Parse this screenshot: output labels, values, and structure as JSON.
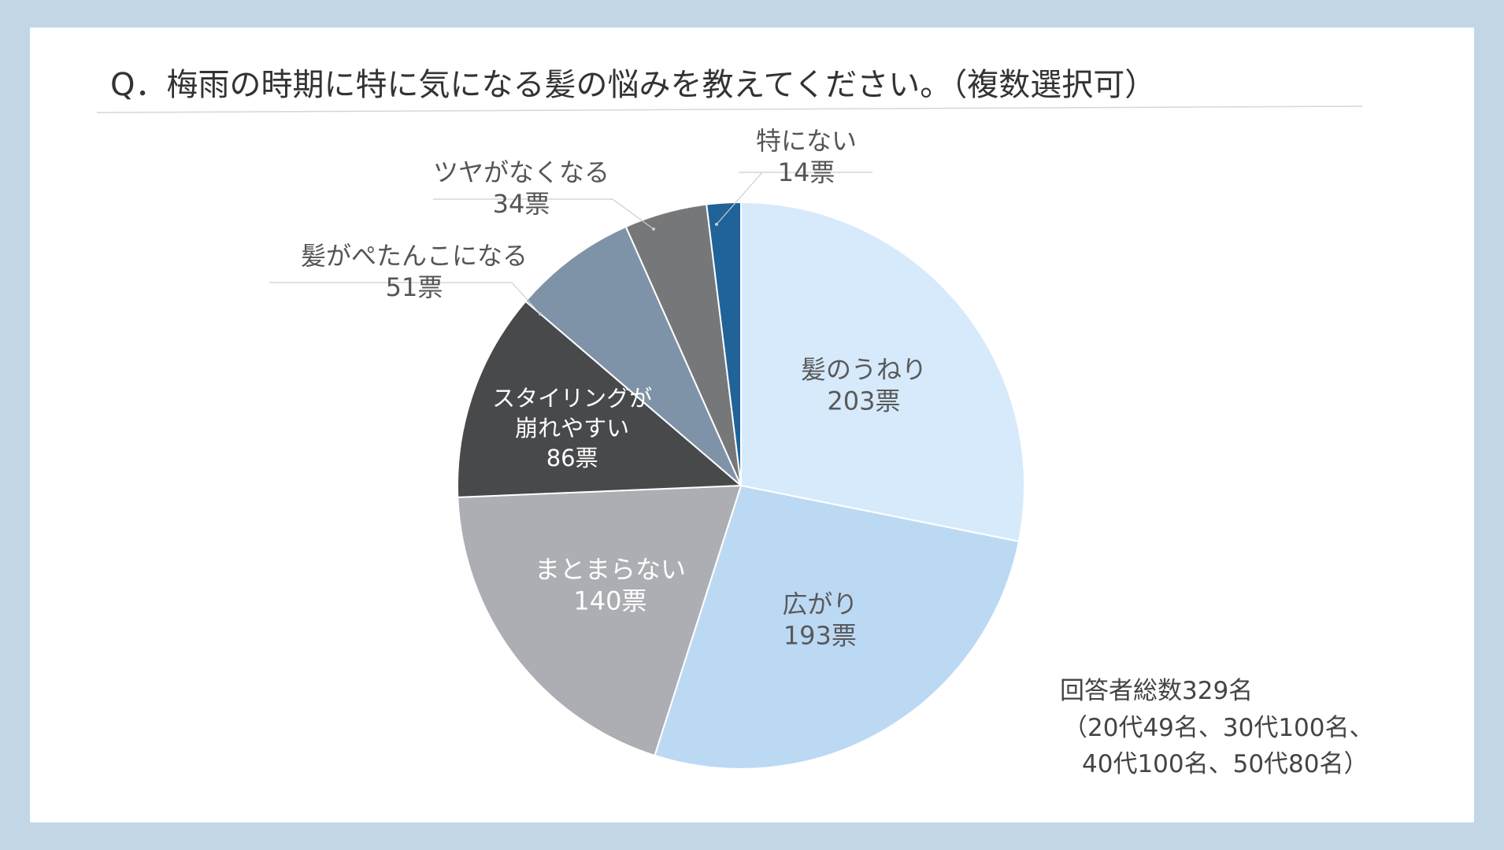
{
  "chart_data": {
    "type": "pie",
    "title": "Q．梅雨の時期に特に気になる髪の悩みを教えてください。（複数選択可）",
    "unit_suffix": "票",
    "slices": [
      {
        "label": "髪のうねり",
        "value": 203,
        "color": "#d6eafb",
        "text_color": "#595959"
      },
      {
        "label": "広がり",
        "value": 193,
        "color": "#bcd9f4",
        "text_color": "#595959"
      },
      {
        "label": "まとまらない",
        "value": 140,
        "color": "#acaeb3",
        "text_color": "#ffffff"
      },
      {
        "label": "スタイリングが崩れやすい",
        "value": 86,
        "color": "#48494b",
        "text_color": "#ffffff",
        "label_lines": [
          "スタイリングが",
          "崩れやすい"
        ]
      },
      {
        "label": "髪がぺたんこになる",
        "value": 51,
        "color": "#7f93a8",
        "text_color": "#555555"
      },
      {
        "label": "ツヤがなくなる",
        "value": 34,
        "color": "#767778",
        "text_color": "#555555"
      },
      {
        "label": "特にない",
        "value": 14,
        "color": "#1f6399",
        "text_color": "#555555"
      }
    ],
    "note": {
      "line1": "回答者総数329名",
      "line2": "（20代49名、30代100名、",
      "line3": "40代100名、50代80名）"
    }
  }
}
